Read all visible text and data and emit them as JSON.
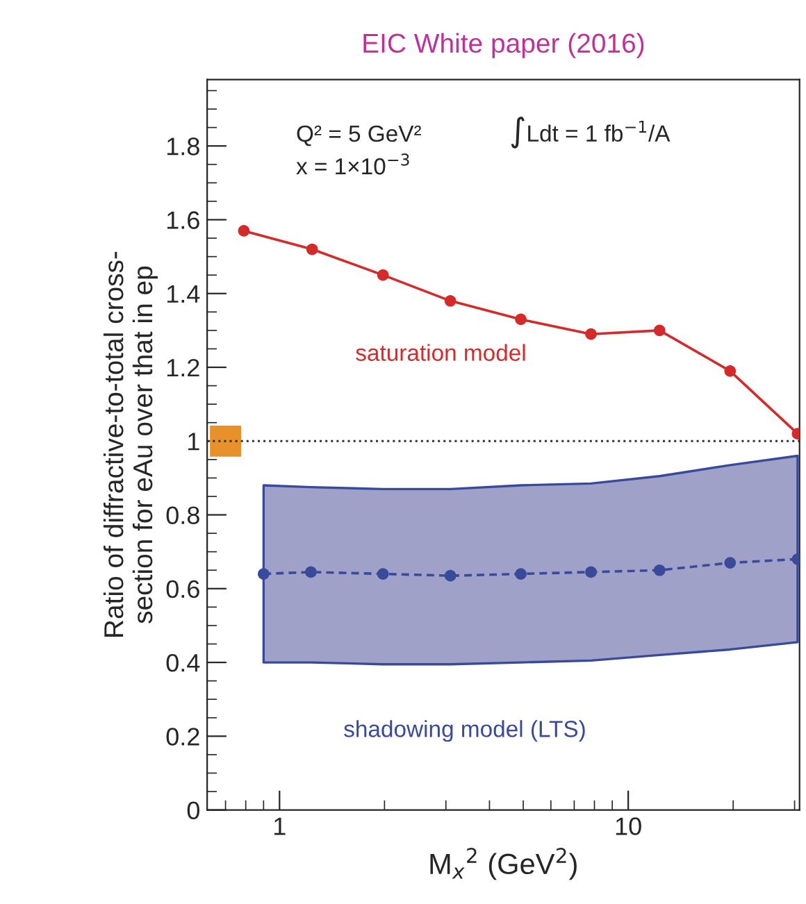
{
  "chart_data": {
    "type": "line",
    "title": "EIC White paper (2016)",
    "xlabel": "M$_{x}$$^{2}$ (GeV$^{2}$)",
    "ylabel": "Ratio of diffractive-to-total cross-\nsection for eAu over that in ep",
    "annotations": [
      "Q² = 5 GeV²",
      "x = 1×10$^{−3}$",
      "∫Ldt = 1 fb$^{−1}$/A"
    ],
    "log": "x",
    "xlim": [
      0.62,
      31
    ],
    "xticks": [
      1,
      10
    ],
    "ylim": [
      0,
      1.98
    ],
    "yticks": [
      {
        "value": 0,
        "label": "0"
      },
      0.2,
      0.4,
      0.6,
      0.8,
      {
        "value": 1,
        "label": "1"
      },
      1.2,
      1.4,
      1.6,
      1.8
    ],
    "ref_lines": [
      {
        "axis": "y",
        "value": 1,
        "color": "#333333",
        "line_style": "dotted"
      }
    ],
    "marker": "circle",
    "legend": false,
    "grid": false,
    "series": [
      {
        "name": "saturation model",
        "color": "#d42a2a",
        "line_style": "solid",
        "x": [
          0.79,
          1.24,
          1.98,
          3.09,
          4.92,
          7.82,
          12.3,
          19.6,
          30.6
        ],
        "values": [
          1.57,
          1.52,
          1.45,
          1.38,
          1.33,
          1.29,
          1.3,
          1.19,
          1.02
        ]
      },
      {
        "name": "shadowing model (LTS)",
        "color": "#3a4a9a",
        "line_style": "dashed",
        "x": [
          0.9,
          1.23,
          1.98,
          3.09,
          4.92,
          7.82,
          12.3,
          19.6,
          30.6
        ],
        "values": [
          0.64,
          0.645,
          0.64,
          0.635,
          0.64,
          0.645,
          0.65,
          0.67,
          0.68
        ],
        "lower": [
          0.4,
          0.4,
          0.395,
          0.395,
          0.4,
          0.405,
          0.42,
          0.435,
          0.455
        ],
        "upper": [
          0.88,
          0.875,
          0.87,
          0.87,
          0.88,
          0.885,
          0.905,
          0.935,
          0.96
        ]
      },
      {
        "type": "scatter",
        "marker": "square",
        "color": "#e8902a",
        "x": [
          0.7
        ],
        "values": [
          1
        ]
      }
    ]
  }
}
